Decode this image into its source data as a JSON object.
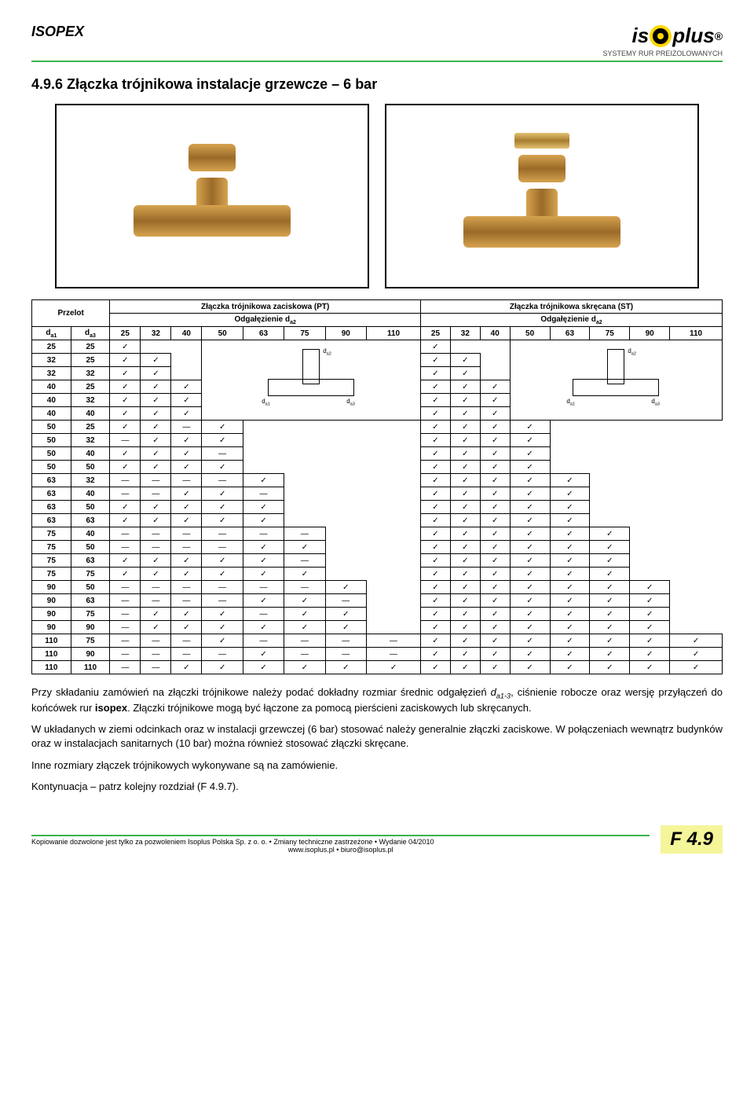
{
  "header": {
    "brand_left": "ISOPEX",
    "logo_text_pre": "is",
    "logo_text_post": "plus",
    "logo_reg": "®",
    "tagline": "SYSTEMY RUR PREIZOLOWANYCH"
  },
  "section": {
    "title": "4.9.6  Złączka trójnikowa instalacje grzewcze – 6 bar"
  },
  "table": {
    "header_przelot": "Przelot",
    "header_pt": "Złączka trójnikowa zaciskowa (PT)",
    "header_st": "Złączka trójnikowa skręcana (ST)",
    "header_odg": "Odgałęzienie d",
    "header_odg_sub": "a2",
    "cols_left": [
      "d",
      "d"
    ],
    "cols_left_sub": [
      "a1",
      "a3"
    ],
    "sizes": [
      "25",
      "32",
      "40",
      "50",
      "63",
      "75",
      "90",
      "110"
    ],
    "diag_labels": {
      "top": "d_a2",
      "left": "d_a1",
      "right": "d_a3"
    },
    "rows": [
      {
        "a1": "25",
        "a3": "25",
        "pt": [
          "c",
          "",
          "",
          "",
          "",
          "",
          "",
          ""
        ],
        "st": [
          "c",
          "",
          "",
          "",
          "",
          "",
          "",
          ""
        ]
      },
      {
        "a1": "32",
        "a3": "25",
        "pt": [
          "c",
          "c",
          "",
          "",
          "",
          "",
          "",
          ""
        ],
        "st": [
          "c",
          "c",
          "",
          "",
          "",
          "",
          "",
          ""
        ]
      },
      {
        "a1": "32",
        "a3": "32",
        "pt": [
          "c",
          "c",
          "",
          "",
          "",
          "",
          "",
          ""
        ],
        "st": [
          "c",
          "c",
          "",
          "",
          "",
          "",
          "",
          ""
        ]
      },
      {
        "a1": "40",
        "a3": "25",
        "pt": [
          "c",
          "c",
          "c",
          "",
          "",
          "",
          "",
          ""
        ],
        "st": [
          "c",
          "c",
          "c",
          "",
          "",
          "",
          "",
          ""
        ]
      },
      {
        "a1": "40",
        "a3": "32",
        "pt": [
          "c",
          "c",
          "c",
          "",
          "",
          "",
          "",
          ""
        ],
        "st": [
          "c",
          "c",
          "c",
          "",
          "",
          "",
          "",
          ""
        ]
      },
      {
        "a1": "40",
        "a3": "40",
        "pt": [
          "c",
          "c",
          "c",
          "",
          "",
          "",
          "",
          ""
        ],
        "st": [
          "c",
          "c",
          "c",
          "",
          "",
          "",
          "",
          ""
        ]
      },
      {
        "a1": "50",
        "a3": "25",
        "pt": [
          "c",
          "c",
          "d",
          "c",
          "",
          "",
          "",
          ""
        ],
        "st": [
          "c",
          "c",
          "c",
          "c",
          "",
          "",
          "",
          ""
        ]
      },
      {
        "a1": "50",
        "a3": "32",
        "pt": [
          "d",
          "c",
          "c",
          "c",
          "",
          "",
          "",
          ""
        ],
        "st": [
          "c",
          "c",
          "c",
          "c",
          "",
          "",
          "",
          ""
        ]
      },
      {
        "a1": "50",
        "a3": "40",
        "pt": [
          "c",
          "c",
          "c",
          "d",
          "",
          "",
          "",
          ""
        ],
        "st": [
          "c",
          "c",
          "c",
          "c",
          "",
          "",
          "",
          ""
        ]
      },
      {
        "a1": "50",
        "a3": "50",
        "pt": [
          "c",
          "c",
          "c",
          "c",
          "",
          "",
          "",
          ""
        ],
        "st": [
          "c",
          "c",
          "c",
          "c",
          "",
          "",
          "",
          ""
        ]
      },
      {
        "a1": "63",
        "a3": "32",
        "pt": [
          "d",
          "d",
          "d",
          "d",
          "c",
          "",
          "",
          ""
        ],
        "st": [
          "c",
          "c",
          "c",
          "c",
          "c",
          "",
          "",
          ""
        ]
      },
      {
        "a1": "63",
        "a3": "40",
        "pt": [
          "d",
          "d",
          "c",
          "c",
          "d",
          "",
          "",
          ""
        ],
        "st": [
          "c",
          "c",
          "c",
          "c",
          "c",
          "",
          "",
          ""
        ]
      },
      {
        "a1": "63",
        "a3": "50",
        "pt": [
          "c",
          "c",
          "c",
          "c",
          "c",
          "",
          "",
          ""
        ],
        "st": [
          "c",
          "c",
          "c",
          "c",
          "c",
          "",
          "",
          ""
        ]
      },
      {
        "a1": "63",
        "a3": "63",
        "pt": [
          "c",
          "c",
          "c",
          "c",
          "c",
          "",
          "",
          ""
        ],
        "st": [
          "c",
          "c",
          "c",
          "c",
          "c",
          "",
          "",
          ""
        ]
      },
      {
        "a1": "75",
        "a3": "40",
        "pt": [
          "d",
          "d",
          "d",
          "d",
          "d",
          "d",
          "",
          ""
        ],
        "st": [
          "c",
          "c",
          "c",
          "c",
          "c",
          "c",
          "",
          ""
        ]
      },
      {
        "a1": "75",
        "a3": "50",
        "pt": [
          "d",
          "d",
          "d",
          "d",
          "c",
          "c",
          "",
          ""
        ],
        "st": [
          "c",
          "c",
          "c",
          "c",
          "c",
          "c",
          "",
          ""
        ]
      },
      {
        "a1": "75",
        "a3": "63",
        "pt": [
          "c",
          "c",
          "c",
          "c",
          "c",
          "d",
          "",
          ""
        ],
        "st": [
          "c",
          "c",
          "c",
          "c",
          "c",
          "c",
          "",
          ""
        ]
      },
      {
        "a1": "75",
        "a3": "75",
        "pt": [
          "c",
          "c",
          "c",
          "c",
          "c",
          "c",
          "",
          ""
        ],
        "st": [
          "c",
          "c",
          "c",
          "c",
          "c",
          "c",
          "",
          ""
        ]
      },
      {
        "a1": "90",
        "a3": "50",
        "pt": [
          "d",
          "d",
          "d",
          "d",
          "d",
          "d",
          "c",
          ""
        ],
        "st": [
          "c",
          "c",
          "c",
          "c",
          "c",
          "c",
          "c",
          ""
        ]
      },
      {
        "a1": "90",
        "a3": "63",
        "pt": [
          "d",
          "d",
          "d",
          "d",
          "c",
          "c",
          "d",
          ""
        ],
        "st": [
          "c",
          "c",
          "c",
          "c",
          "c",
          "c",
          "c",
          ""
        ]
      },
      {
        "a1": "90",
        "a3": "75",
        "pt": [
          "d",
          "c",
          "c",
          "c",
          "d",
          "c",
          "c",
          ""
        ],
        "st": [
          "c",
          "c",
          "c",
          "c",
          "c",
          "c",
          "c",
          ""
        ]
      },
      {
        "a1": "90",
        "a3": "90",
        "pt": [
          "d",
          "c",
          "c",
          "c",
          "c",
          "c",
          "c",
          ""
        ],
        "st": [
          "c",
          "c",
          "c",
          "c",
          "c",
          "c",
          "c",
          ""
        ]
      },
      {
        "a1": "110",
        "a3": "75",
        "pt": [
          "d",
          "d",
          "d",
          "c",
          "d",
          "d",
          "d",
          "d"
        ],
        "st": [
          "c",
          "c",
          "c",
          "c",
          "c",
          "c",
          "c",
          "c"
        ]
      },
      {
        "a1": "110",
        "a3": "90",
        "pt": [
          "d",
          "d",
          "d",
          "d",
          "c",
          "d",
          "d",
          "d"
        ],
        "st": [
          "c",
          "c",
          "c",
          "c",
          "c",
          "c",
          "c",
          "c"
        ]
      },
      {
        "a1": "110",
        "a3": "110",
        "pt": [
          "d",
          "d",
          "c",
          "c",
          "c",
          "c",
          "c",
          "c"
        ],
        "st": [
          "c",
          "c",
          "c",
          "c",
          "c",
          "c",
          "c",
          "c"
        ]
      }
    ]
  },
  "paragraphs": {
    "p1_a": "Przy składaniu zamówień na złączki trójnikowe należy podać dokładny rozmiar średnic odgałęzień ",
    "p1_b": "d",
    "p1_b_sub": "a1-3",
    "p1_c": ", ciśnienie robocze oraz wersję przyłączeń do końcówek rur ",
    "p1_d": "isopex",
    "p1_e": ". Złączki trójnikowe mogą być łączone za pomocą pierścieni zaciskowych lub skręcanych.",
    "p2": "W układanych w ziemi odcinkach oraz w instalacji grzewczej (6 bar) stosować należy generalnie złączki zaciskowe. W połączeniach wewnątrz budynków oraz w instalacjach sanitarnych (10 bar) można również stosować złączki skręcane.",
    "p3": "Inne rozmiary złączek trójnikowych wykonywane są na zamówienie.",
    "p4": "Kontynuacja – patrz kolejny rozdział (F 4.9.7)."
  },
  "footer": {
    "note": "Kopiowanie dozwolone jest tylko za pozwoleniem Isoplus Polska Sp. z o. o. • Zmiany techniczne zastrzeżone • Wydanie 04/2010",
    "url": "www.isoplus.pl • biuro@isoplus.pl",
    "page": "F 4.9"
  },
  "glyphs": {
    "check": "✓",
    "dash": "—"
  }
}
